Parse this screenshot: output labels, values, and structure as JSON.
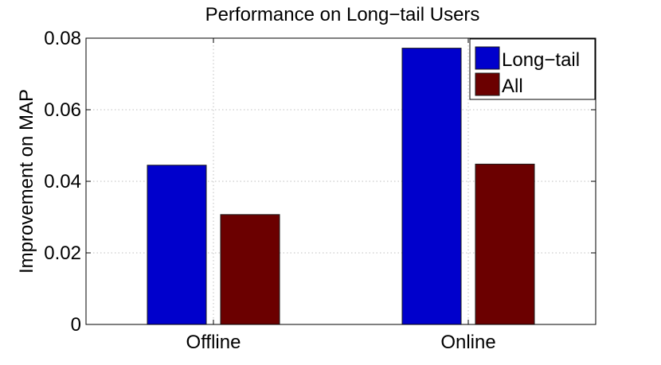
{
  "chart_data": {
    "type": "bar",
    "title": "Performance on Long−tail Users",
    "xlabel": "",
    "ylabel": "Improvement on MAP",
    "categories": [
      "Offline",
      "Online"
    ],
    "series": [
      {
        "name": "Long−tail",
        "color": "#0000cc",
        "values": [
          0.0445,
          0.0772
        ]
      },
      {
        "name": "All",
        "color": "#6b0000",
        "values": [
          0.0307,
          0.0448
        ]
      }
    ],
    "ylim": [
      0,
      0.08
    ],
    "yticks": [
      0,
      0.02,
      0.04,
      0.06,
      0.08
    ],
    "ytick_labels": [
      "0",
      "0.02",
      "0.04",
      "0.06",
      "0.08"
    ],
    "grid": true,
    "legend_position": "top-right"
  }
}
